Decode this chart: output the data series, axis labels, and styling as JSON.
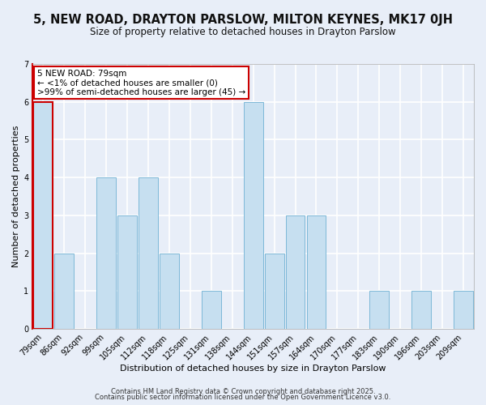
{
  "title": "5, NEW ROAD, DRAYTON PARSLOW, MILTON KEYNES, MK17 0JH",
  "subtitle": "Size of property relative to detached houses in Drayton Parslow",
  "xlabel": "Distribution of detached houses by size in Drayton Parslow",
  "ylabel": "Number of detached properties",
  "annotation_line1": "5 NEW ROAD: 79sqm",
  "annotation_line2": "← <1% of detached houses are smaller (0)",
  "annotation_line3": ">99% of semi-detached houses are larger (45) →",
  "footer_line1": "Contains HM Land Registry data © Crown copyright and database right 2025.",
  "footer_line2": "Contains public sector information licensed under the Open Government Licence v3.0.",
  "bins": [
    "79sqm",
    "86sqm",
    "92sqm",
    "99sqm",
    "105sqm",
    "112sqm",
    "118sqm",
    "125sqm",
    "131sqm",
    "138sqm",
    "144sqm",
    "151sqm",
    "157sqm",
    "164sqm",
    "170sqm",
    "177sqm",
    "183sqm",
    "190sqm",
    "196sqm",
    "203sqm",
    "209sqm"
  ],
  "counts": [
    6,
    2,
    0,
    4,
    3,
    4,
    2,
    0,
    1,
    0,
    6,
    2,
    3,
    3,
    0,
    0,
    1,
    0,
    1,
    0,
    1
  ],
  "bar_color": "#c6dff0",
  "bar_edge_color": "#7db8d8",
  "highlight_bar_index": 0,
  "highlight_edge_color": "#cc0000",
  "annotation_box_edge_color": "#cc0000",
  "annotation_box_face_color": "#ffffff",
  "ylim": [
    0,
    7
  ],
  "yticks": [
    0,
    1,
    2,
    3,
    4,
    5,
    6,
    7
  ],
  "background_color": "#e8eef8",
  "grid_color": "#ffffff",
  "title_fontsize": 10.5,
  "subtitle_fontsize": 8.5,
  "axis_label_fontsize": 8,
  "tick_fontsize": 7,
  "annotation_fontsize": 7.5,
  "footer_fontsize": 6
}
